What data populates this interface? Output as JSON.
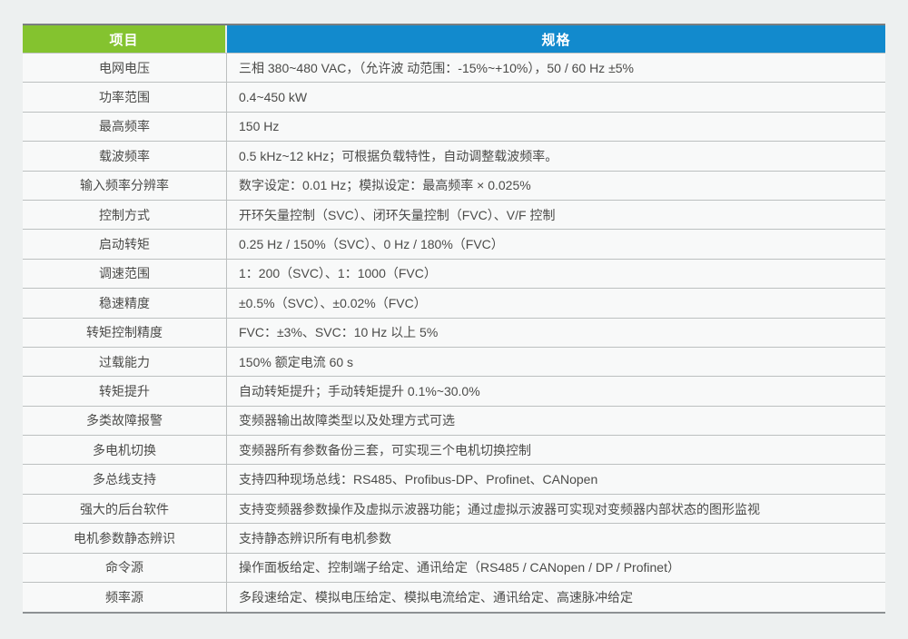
{
  "table": {
    "header": {
      "item_label": "项目",
      "spec_label": "规格"
    },
    "colors": {
      "header_green": "#84c32f",
      "header_blue": "#128acd",
      "page_bg": "#edf0f0",
      "row_bg": "#f8f9f9",
      "separator": "#bcc0c0",
      "text": "#4b4b49"
    },
    "rows": [
      {
        "item": "电网电压",
        "spec": "三相 380~480 VAC，（允许波 动范围：-15%~+10%），50 / 60 Hz ±5%"
      },
      {
        "item": "功率范围",
        "spec": "0.4~450 kW"
      },
      {
        "item": "最高频率",
        "spec": "150 Hz"
      },
      {
        "item": "载波频率",
        "spec": "0.5 kHz~12 kHz；可根据负载特性，自动调整载波频率。"
      },
      {
        "item": "输入频率分辨率",
        "spec": "数字设定：0.01 Hz；模拟设定：最高频率 × 0.025%"
      },
      {
        "item": "控制方式",
        "spec": "开环矢量控制（SVC）、闭环矢量控制（FVC）、V/F 控制"
      },
      {
        "item": "启动转矩",
        "spec": "0.25 Hz / 150%（SVC）、0 Hz / 180%（FVC）"
      },
      {
        "item": "调速范围",
        "spec": "1：200（SVC）、1：1000（FVC）"
      },
      {
        "item": "稳速精度",
        "spec": "±0.5%（SVC）、±0.02%（FVC）"
      },
      {
        "item": "转矩控制精度",
        "spec": "FVC：±3%、SVC：10 Hz 以上 5%"
      },
      {
        "item": "过载能力",
        "spec": "150% 额定电流 60 s"
      },
      {
        "item": "转矩提升",
        "spec": "自动转矩提升；手动转矩提升 0.1%~30.0%"
      },
      {
        "item": "多类故障报警",
        "spec": "变频器输出故障类型以及处理方式可选"
      },
      {
        "item": "多电机切换",
        "spec": "变频器所有参数备份三套，可实现三个电机切换控制"
      },
      {
        "item": "多总线支持",
        "spec": "支持四种现场总线：RS485、Profibus-DP、Profinet、CANopen"
      },
      {
        "item": "强大的后台软件",
        "spec": "支持变频器参数操作及虚拟示波器功能；通过虚拟示波器可实现对变频器内部状态的图形监视"
      },
      {
        "item": "电机参数静态辨识",
        "spec": "支持静态辨识所有电机参数"
      },
      {
        "item": "命令源",
        "spec": "操作面板给定、控制端子给定、通讯给定（RS485 / CANopen / DP / Profinet）"
      },
      {
        "item": "频率源",
        "spec": "多段速给定、模拟电压给定、模拟电流给定、通讯给定、高速脉冲给定"
      }
    ]
  }
}
